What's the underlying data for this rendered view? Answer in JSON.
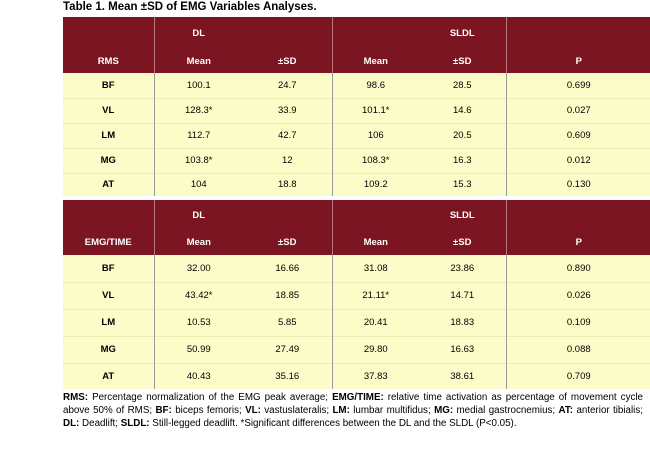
{
  "title": "Table 1. Mean ±SD of EMG Variables Analyses.",
  "groups": {
    "dl": "DL",
    "sldl": "SLDL"
  },
  "columns": {
    "mean": "Mean",
    "sd": "±SD",
    "p": "P"
  },
  "sections": [
    {
      "label": "RMS",
      "rows": [
        {
          "var": "BF",
          "dl_mean": "100.1",
          "dl_sd": "24.7",
          "sldl_mean": "98.6",
          "sldl_sd": "28.5",
          "p": "0.699"
        },
        {
          "var": "VL",
          "dl_mean": "128.3*",
          "dl_sd": "33.9",
          "sldl_mean": "101.1*",
          "sldl_sd": "14.6",
          "p": "0.027"
        },
        {
          "var": "LM",
          "dl_mean": "112.7",
          "dl_sd": "42.7",
          "sldl_mean": "106",
          "sldl_sd": "20.5",
          "p": "0.609"
        },
        {
          "var": "MG",
          "dl_mean": "103.8*",
          "dl_sd": "12",
          "sldl_mean": "108.3*",
          "sldl_sd": "16.3",
          "p": "0.012"
        },
        {
          "var": "AT",
          "dl_mean": "104",
          "dl_sd": "18.8",
          "sldl_mean": "109.2",
          "sldl_sd": "15.3",
          "p": "0.130"
        }
      ]
    },
    {
      "label": "EMG/TIME",
      "rows": [
        {
          "var": "BF",
          "dl_mean": "32.00",
          "dl_sd": "16.66",
          "sldl_mean": "31.08",
          "sldl_sd": "23.86",
          "p": "0.890"
        },
        {
          "var": "VL",
          "dl_mean": "43.42*",
          "dl_sd": "18.85",
          "sldl_mean": "21.11*",
          "sldl_sd": "14.71",
          "p": "0.026"
        },
        {
          "var": "LM",
          "dl_mean": "10.53",
          "dl_sd": "5.85",
          "sldl_mean": "20.41",
          "sldl_sd": "18.83",
          "p": "0.109"
        },
        {
          "var": "MG",
          "dl_mean": "50.99",
          "dl_sd": "27.49",
          "sldl_mean": "29.80",
          "sldl_sd": "16.63",
          "p": "0.088"
        },
        {
          "var": "AT",
          "dl_mean": "40.43",
          "dl_sd": "35.16",
          "sldl_mean": "37.83",
          "sldl_sd": "38.61",
          "p": "0.709"
        }
      ]
    }
  ],
  "footnote": [
    {
      "term": "RMS:",
      "text": " Percentage normalization of the EMG peak average; "
    },
    {
      "term": "EMG/TIME:",
      "text": " relative time activation as percentage of movement cycle above 50% of RMS; "
    },
    {
      "term": "BF:",
      "text": " biceps femoris; "
    },
    {
      "term": "VL:",
      "text": " vastuslateralis; "
    },
    {
      "term": "LM:",
      "text": " lumbar multifidus; "
    },
    {
      "term": "MG:",
      "text": " medial gastrocnemius; "
    },
    {
      "term": "AT:",
      "text": " anterior tibialis; "
    },
    {
      "term": "DL:",
      "text": " Deadlift; "
    },
    {
      "term": "SLDL:",
      "text": " Still-legged deadlift. *Significant differences between the DL and the SLDL (P<0.05)."
    }
  ],
  "colors": {
    "header_bg": "#7a1521",
    "body_bg": "#fcfcc8",
    "header_text": "#ffffff"
  }
}
